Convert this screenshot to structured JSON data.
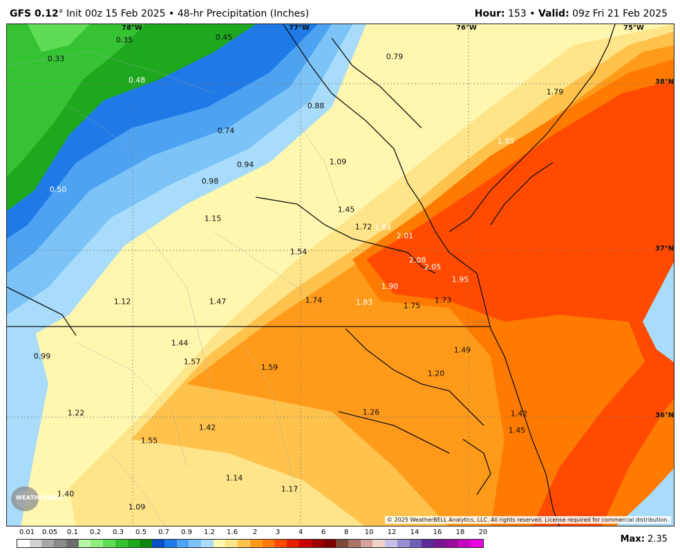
{
  "header": {
    "model": "GFS 0.12",
    "degree": "°",
    "init": "Init 00z 15 Feb 2025",
    "product": "48-hr Precipitation (Inches)",
    "hour_label": "Hour:",
    "hour_value": "153",
    "valid_label": "Valid:",
    "valid_value": "09z Fri 21 Feb 2025",
    "sep": "•"
  },
  "coords": {
    "lon1": "78°W",
    "lon2": "77°W",
    "lon3": "76°W",
    "lon4": "75°W",
    "lat1": "38°N",
    "lat2": "37°N",
    "lat3": "36°N"
  },
  "values": [
    {
      "t": "0.35",
      "c": "k"
    },
    {
      "t": "0.45",
      "c": "k"
    },
    {
      "t": "0.79",
      "c": "k"
    },
    {
      "t": "1.79",
      "c": "k"
    },
    {
      "t": "0.33",
      "c": "k"
    },
    {
      "t": "0.48",
      "c": "w"
    },
    {
      "t": "0.88",
      "c": "k"
    },
    {
      "t": "0.74",
      "c": "k"
    },
    {
      "t": "1.85",
      "c": "w"
    },
    {
      "t": "0.94",
      "c": "k"
    },
    {
      "t": "1.09",
      "c": "k"
    },
    {
      "t": "0.98",
      "c": "k"
    },
    {
      "t": "0.50",
      "c": "w"
    },
    {
      "t": "1.45",
      "c": "k"
    },
    {
      "t": "1.15",
      "c": "k"
    },
    {
      "t": "1.72",
      "c": "k"
    },
    {
      "t": "1.84",
      "c": "w"
    },
    {
      "t": "2.01",
      "c": "w"
    },
    {
      "t": "1.54",
      "c": "k"
    },
    {
      "t": "2.08",
      "c": "w"
    },
    {
      "t": "2.05",
      "c": "w"
    },
    {
      "t": "1.95",
      "c": "w"
    },
    {
      "t": "1.90",
      "c": "w"
    },
    {
      "t": "1.12",
      "c": "k"
    },
    {
      "t": "1.47",
      "c": "k"
    },
    {
      "t": "1.74",
      "c": "k"
    },
    {
      "t": "1.83",
      "c": "w"
    },
    {
      "t": "1.75",
      "c": "k"
    },
    {
      "t": "1.73",
      "c": "k"
    },
    {
      "t": "1.44",
      "c": "k"
    },
    {
      "t": "1.49",
      "c": "k"
    },
    {
      "t": "0.99",
      "c": "k"
    },
    {
      "t": "1.57",
      "c": "k"
    },
    {
      "t": "1.59",
      "c": "k"
    },
    {
      "t": "1.20",
      "c": "k"
    },
    {
      "t": "1.22",
      "c": "k"
    },
    {
      "t": "1.26",
      "c": "k"
    },
    {
      "t": "1.42",
      "c": "k"
    },
    {
      "t": "1.42",
      "c": "k"
    },
    {
      "t": "1.45",
      "c": "k"
    },
    {
      "t": "1.55",
      "c": "k"
    },
    {
      "t": "1.14",
      "c": "k"
    },
    {
      "t": "1.17",
      "c": "k"
    },
    {
      "t": "1.40",
      "c": "k"
    },
    {
      "t": "1.09",
      "c": "k"
    }
  ],
  "copyright": "© 2025 WeatherBELL Analytics, LLC. All rights reserved. License required for commercial distribution.",
  "logo_text": "WEATHERBELL",
  "legend": {
    "ticks": [
      "0.01",
      "0.05",
      "0.1",
      "0.2",
      "0.3",
      "0.5",
      "0.7",
      "0.9",
      "1.2",
      "1.6",
      "2",
      "3",
      "4",
      "6",
      "8",
      "10",
      "12",
      "14",
      "16",
      "18",
      "20"
    ],
    "colors": [
      "#ffffff",
      "#d2d2d2",
      "#a8a8a8",
      "#8a8a8a",
      "#6e6e6e",
      "#b6f7a6",
      "#8fef7e",
      "#5fdc55",
      "#35c334",
      "#1ea81e",
      "#0f8a0f",
      "#0a4fc8",
      "#1f7ae8",
      "#4da3f2",
      "#7cc3f7",
      "#a9dcfa",
      "#fff6b0",
      "#ffe58a",
      "#ffc24d",
      "#ff9a1a",
      "#ff7a00",
      "#ff4a00",
      "#e61e00",
      "#c80000",
      "#a00000",
      "#7a0000",
      "#7a4a3a",
      "#a8746a",
      "#d2a49c",
      "#efd4cc",
      "#c8c0e6",
      "#9a8ed0",
      "#7060b8",
      "#5a2c9a",
      "#7a1490",
      "#9a0ca0",
      "#c808c0",
      "#e800e0"
    ]
  },
  "max": {
    "label": "Max:",
    "value": "2.35"
  }
}
